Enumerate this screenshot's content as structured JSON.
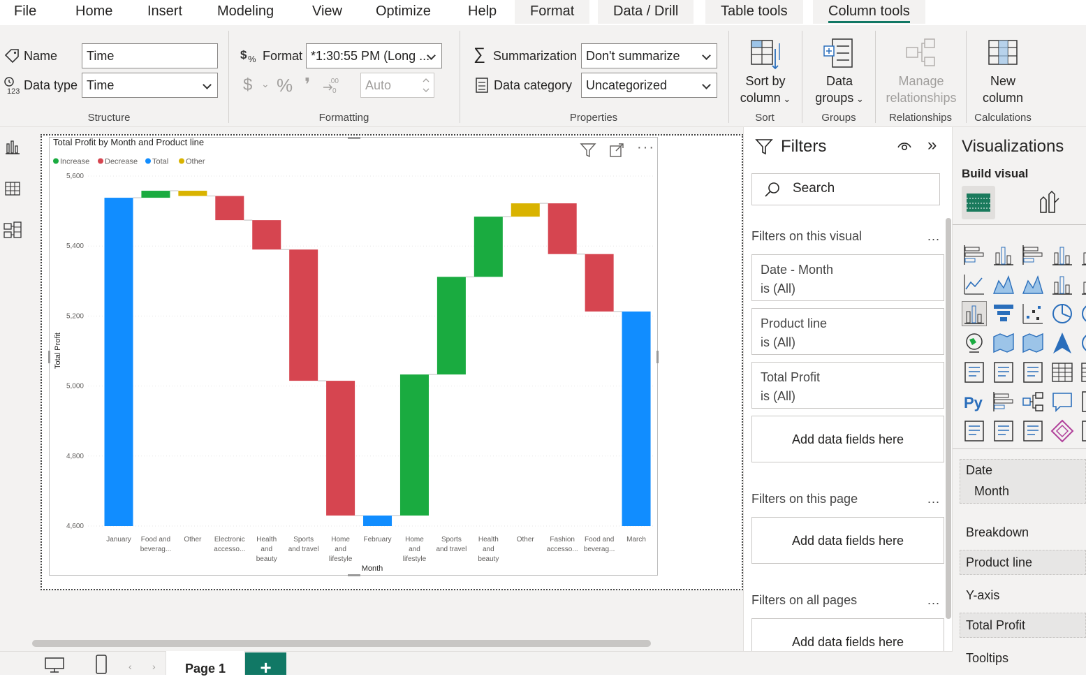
{
  "menu": {
    "file": "File",
    "home": "Home",
    "insert": "Insert",
    "modeling": "Modeling",
    "view": "View",
    "optimize": "Optimize",
    "help": "Help",
    "format": "Format",
    "data_drill": "Data / Drill",
    "table_tools": "Table tools",
    "column_tools": "Column tools"
  },
  "ribbon": {
    "structure": {
      "name_label": "Name",
      "name_value": "Time",
      "datatype_label": "Data type",
      "datatype_value": "Time",
      "group": "Structure"
    },
    "formatting": {
      "format_label": "Format",
      "format_value": "*1:30:55 PM (Long ...",
      "dollar": "$",
      "percent": "%",
      "comma": "❜",
      "decimals": "Auto",
      "group": "Formatting"
    },
    "properties": {
      "summarization_label": "Summarization",
      "summarization_value": "Don't summarize",
      "category_label": "Data category",
      "category_value": "Uncategorized",
      "group": "Properties"
    },
    "sort": {
      "line1": "Sort by",
      "line2": "column",
      "group": "Sort"
    },
    "groups": {
      "line1": "Data",
      "line2": "groups",
      "group": "Groups"
    },
    "relationships": {
      "line1": "Manage",
      "line2": "relationships",
      "group": "Relationships"
    },
    "calculations": {
      "line1": "New",
      "line2": "column",
      "group": "Calculations"
    }
  },
  "chart_data": {
    "type": "waterfall",
    "title": "Total Profit by Month and Product line",
    "xlabel": "Month",
    "ylabel": "Total Profit",
    "ylim": [
      4600,
      5600
    ],
    "yticks": [
      "5,600",
      "5,400",
      "5,200",
      "5,000",
      "4,800",
      "4,600"
    ],
    "legend": [
      {
        "label": "Increase",
        "color": "#1aab40"
      },
      {
        "label": "Decrease",
        "color": "#d64550"
      },
      {
        "label": "Total",
        "color": "#118dff"
      },
      {
        "label": "Other",
        "color": "#d9b300"
      }
    ],
    "bars": [
      {
        "label": [
          "January"
        ],
        "start": 4600,
        "end": 5538,
        "kind": "Total"
      },
      {
        "label": [
          "Food and",
          "beverag..."
        ],
        "start": 5538,
        "end": 5558,
        "kind": "Increase"
      },
      {
        "label": [
          "Other"
        ],
        "start": 5558,
        "end": 5543,
        "kind": "Other"
      },
      {
        "label": [
          "Electronic",
          "accesso..."
        ],
        "start": 5543,
        "end": 5474,
        "kind": "Decrease"
      },
      {
        "label": [
          "Health",
          "and",
          "beauty"
        ],
        "start": 5474,
        "end": 5390,
        "kind": "Decrease"
      },
      {
        "label": [
          "Sports",
          "and travel"
        ],
        "start": 5390,
        "end": 5015,
        "kind": "Decrease"
      },
      {
        "label": [
          "Home",
          "and",
          "lifestyle"
        ],
        "start": 5015,
        "end": 4630,
        "kind": "Decrease"
      },
      {
        "label": [
          "February"
        ],
        "start": 4600,
        "end": 4630,
        "kind": "Total"
      },
      {
        "label": [
          "Home",
          "and",
          "lifestyle"
        ],
        "start": 4630,
        "end": 5033,
        "kind": "Increase"
      },
      {
        "label": [
          "Sports",
          "and travel"
        ],
        "start": 5033,
        "end": 5312,
        "kind": "Increase"
      },
      {
        "label": [
          "Health",
          "and",
          "beauty"
        ],
        "start": 5312,
        "end": 5484,
        "kind": "Increase"
      },
      {
        "label": [
          "Other"
        ],
        "start": 5484,
        "end": 5522,
        "kind": "Other"
      },
      {
        "label": [
          "Fashion",
          "accesso..."
        ],
        "start": 5522,
        "end": 5377,
        "kind": "Decrease"
      },
      {
        "label": [
          "Food and",
          "beverag..."
        ],
        "start": 5377,
        "end": 5213,
        "kind": "Decrease"
      },
      {
        "label": [
          "March"
        ],
        "start": 4600,
        "end": 5213,
        "kind": "Total"
      }
    ]
  },
  "filters": {
    "title": "Filters",
    "search_placeholder": "Search",
    "on_visual": "Filters on this visual",
    "cards": [
      {
        "name": "Date - Month",
        "state": "is (All)"
      },
      {
        "name": "Product line",
        "state": "is (All)"
      },
      {
        "name": "Total Profit",
        "state": "is (All)"
      }
    ],
    "add_fields": "Add data fields here",
    "on_page": "Filters on this page",
    "on_all": "Filters on all pages",
    "more": "..."
  },
  "viz": {
    "title": "Visualizations",
    "build": "Build visual",
    "x_field_1": "Date",
    "x_field_2": "Month",
    "breakdown_label": "Breakdown",
    "breakdown_field": "Product line",
    "yaxis_label": "Y-axis",
    "yaxis_field": "Total Profit",
    "tooltips_label": "Tooltips",
    "py": "Py"
  },
  "bottom": {
    "page_tab": "Page 1",
    "add": "+"
  }
}
